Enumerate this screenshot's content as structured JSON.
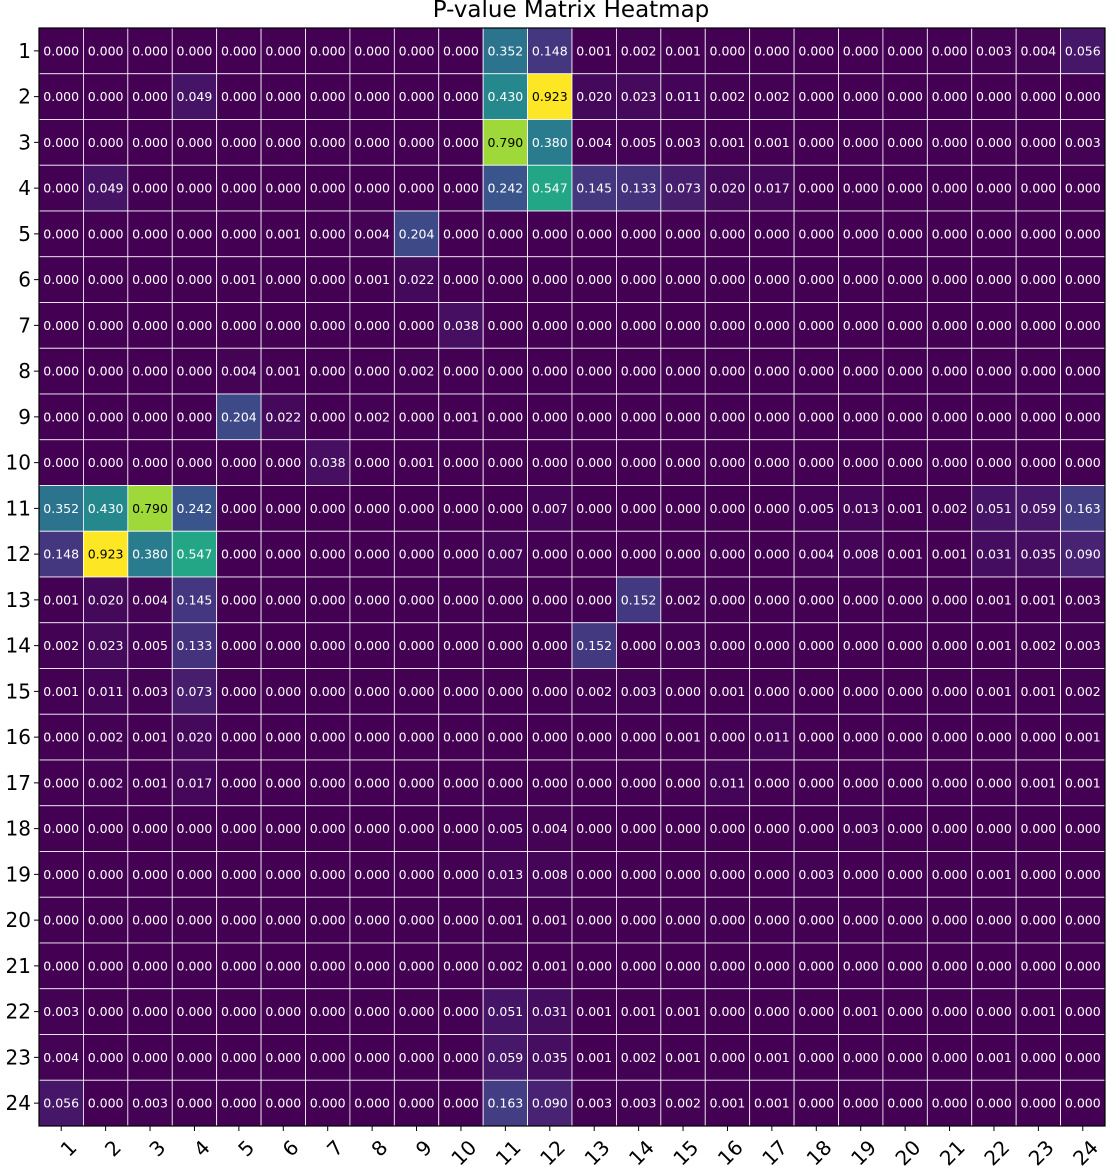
{
  "chart_data": {
    "type": "heatmap",
    "title": "P-value Matrix Heatmap",
    "xlabel": "",
    "ylabel": "",
    "x_categories": [
      "1",
      "2",
      "3",
      "4",
      "5",
      "6",
      "7",
      "8",
      "9",
      "10",
      "11",
      "12",
      "13",
      "14",
      "15",
      "16",
      "17",
      "18",
      "19",
      "20",
      "21",
      "22",
      "23",
      "24"
    ],
    "y_categories": [
      "1",
      "2",
      "3",
      "4",
      "5",
      "6",
      "7",
      "8",
      "9",
      "10",
      "11",
      "12",
      "13",
      "14",
      "15",
      "16",
      "17",
      "18",
      "19",
      "20",
      "21",
      "22",
      "23",
      "24"
    ],
    "colormap": "viridis",
    "vmin": 0,
    "vmax": 0.923,
    "grid": true,
    "values": [
      [
        0.0,
        0.0,
        0.0,
        0.0,
        0.0,
        0.0,
        0.0,
        0.0,
        0.0,
        0.0,
        0.352,
        0.148,
        0.001,
        0.002,
        0.001,
        0.0,
        0.0,
        0.0,
        0.0,
        0.0,
        0.0,
        0.003,
        0.004,
        0.056
      ],
      [
        0.0,
        0.0,
        0.0,
        0.049,
        0.0,
        0.0,
        0.0,
        0.0,
        0.0,
        0.0,
        0.43,
        0.923,
        0.02,
        0.023,
        0.011,
        0.002,
        0.002,
        0.0,
        0.0,
        0.0,
        0.0,
        0.0,
        0.0,
        0.0
      ],
      [
        0.0,
        0.0,
        0.0,
        0.0,
        0.0,
        0.0,
        0.0,
        0.0,
        0.0,
        0.0,
        0.79,
        0.38,
        0.004,
        0.005,
        0.003,
        0.001,
        0.001,
        0.0,
        0.0,
        0.0,
        0.0,
        0.0,
        0.0,
        0.003
      ],
      [
        0.0,
        0.049,
        0.0,
        0.0,
        0.0,
        0.0,
        0.0,
        0.0,
        0.0,
        0.0,
        0.242,
        0.547,
        0.145,
        0.133,
        0.073,
        0.02,
        0.017,
        0.0,
        0.0,
        0.0,
        0.0,
        0.0,
        0.0,
        0.0
      ],
      [
        0.0,
        0.0,
        0.0,
        0.0,
        0.0,
        0.001,
        0.0,
        0.004,
        0.204,
        0.0,
        0.0,
        0.0,
        0.0,
        0.0,
        0.0,
        0.0,
        0.0,
        0.0,
        0.0,
        0.0,
        0.0,
        0.0,
        0.0,
        0.0
      ],
      [
        0.0,
        0.0,
        0.0,
        0.0,
        0.001,
        0.0,
        0.0,
        0.001,
        0.022,
        0.0,
        0.0,
        0.0,
        0.0,
        0.0,
        0.0,
        0.0,
        0.0,
        0.0,
        0.0,
        0.0,
        0.0,
        0.0,
        0.0,
        0.0
      ],
      [
        0.0,
        0.0,
        0.0,
        0.0,
        0.0,
        0.0,
        0.0,
        0.0,
        0.0,
        0.038,
        0.0,
        0.0,
        0.0,
        0.0,
        0.0,
        0.0,
        0.0,
        0.0,
        0.0,
        0.0,
        0.0,
        0.0,
        0.0,
        0.0
      ],
      [
        0.0,
        0.0,
        0.0,
        0.0,
        0.004,
        0.001,
        0.0,
        0.0,
        0.002,
        0.0,
        0.0,
        0.0,
        0.0,
        0.0,
        0.0,
        0.0,
        0.0,
        0.0,
        0.0,
        0.0,
        0.0,
        0.0,
        0.0,
        0.0
      ],
      [
        0.0,
        0.0,
        0.0,
        0.0,
        0.204,
        0.022,
        0.0,
        0.002,
        0.0,
        0.001,
        0.0,
        0.0,
        0.0,
        0.0,
        0.0,
        0.0,
        0.0,
        0.0,
        0.0,
        0.0,
        0.0,
        0.0,
        0.0,
        0.0
      ],
      [
        0.0,
        0.0,
        0.0,
        0.0,
        0.0,
        0.0,
        0.038,
        0.0,
        0.001,
        0.0,
        0.0,
        0.0,
        0.0,
        0.0,
        0.0,
        0.0,
        0.0,
        0.0,
        0.0,
        0.0,
        0.0,
        0.0,
        0.0,
        0.0
      ],
      [
        0.352,
        0.43,
        0.79,
        0.242,
        0.0,
        0.0,
        0.0,
        0.0,
        0.0,
        0.0,
        0.0,
        0.007,
        0.0,
        0.0,
        0.0,
        0.0,
        0.0,
        0.005,
        0.013,
        0.001,
        0.002,
        0.051,
        0.059,
        0.163
      ],
      [
        0.148,
        0.923,
        0.38,
        0.547,
        0.0,
        0.0,
        0.0,
        0.0,
        0.0,
        0.0,
        0.007,
        0.0,
        0.0,
        0.0,
        0.0,
        0.0,
        0.0,
        0.004,
        0.008,
        0.001,
        0.001,
        0.031,
        0.035,
        0.09
      ],
      [
        0.001,
        0.02,
        0.004,
        0.145,
        0.0,
        0.0,
        0.0,
        0.0,
        0.0,
        0.0,
        0.0,
        0.0,
        0.0,
        0.152,
        0.002,
        0.0,
        0.0,
        0.0,
        0.0,
        0.0,
        0.0,
        0.001,
        0.001,
        0.003
      ],
      [
        0.002,
        0.023,
        0.005,
        0.133,
        0.0,
        0.0,
        0.0,
        0.0,
        0.0,
        0.0,
        0.0,
        0.0,
        0.152,
        0.0,
        0.003,
        0.0,
        0.0,
        0.0,
        0.0,
        0.0,
        0.0,
        0.001,
        0.002,
        0.003
      ],
      [
        0.001,
        0.011,
        0.003,
        0.073,
        0.0,
        0.0,
        0.0,
        0.0,
        0.0,
        0.0,
        0.0,
        0.0,
        0.002,
        0.003,
        0.0,
        0.001,
        0.0,
        0.0,
        0.0,
        0.0,
        0.0,
        0.001,
        0.001,
        0.002
      ],
      [
        0.0,
        0.002,
        0.001,
        0.02,
        0.0,
        0.0,
        0.0,
        0.0,
        0.0,
        0.0,
        0.0,
        0.0,
        0.0,
        0.0,
        0.001,
        0.0,
        0.011,
        0.0,
        0.0,
        0.0,
        0.0,
        0.0,
        0.0,
        0.001
      ],
      [
        0.0,
        0.002,
        0.001,
        0.017,
        0.0,
        0.0,
        0.0,
        0.0,
        0.0,
        0.0,
        0.0,
        0.0,
        0.0,
        0.0,
        0.0,
        0.011,
        0.0,
        0.0,
        0.0,
        0.0,
        0.0,
        0.0,
        0.001,
        0.001
      ],
      [
        0.0,
        0.0,
        0.0,
        0.0,
        0.0,
        0.0,
        0.0,
        0.0,
        0.0,
        0.0,
        0.005,
        0.004,
        0.0,
        0.0,
        0.0,
        0.0,
        0.0,
        0.0,
        0.003,
        0.0,
        0.0,
        0.0,
        0.0,
        0.0
      ],
      [
        0.0,
        0.0,
        0.0,
        0.0,
        0.0,
        0.0,
        0.0,
        0.0,
        0.0,
        0.0,
        0.013,
        0.008,
        0.0,
        0.0,
        0.0,
        0.0,
        0.0,
        0.003,
        0.0,
        0.0,
        0.0,
        0.001,
        0.0,
        0.0
      ],
      [
        0.0,
        0.0,
        0.0,
        0.0,
        0.0,
        0.0,
        0.0,
        0.0,
        0.0,
        0.0,
        0.001,
        0.001,
        0.0,
        0.0,
        0.0,
        0.0,
        0.0,
        0.0,
        0.0,
        0.0,
        0.0,
        0.0,
        0.0,
        0.0
      ],
      [
        0.0,
        0.0,
        0.0,
        0.0,
        0.0,
        0.0,
        0.0,
        0.0,
        0.0,
        0.0,
        0.002,
        0.001,
        0.0,
        0.0,
        0.0,
        0.0,
        0.0,
        0.0,
        0.0,
        0.0,
        0.0,
        0.0,
        0.0,
        0.0
      ],
      [
        0.003,
        0.0,
        0.0,
        0.0,
        0.0,
        0.0,
        0.0,
        0.0,
        0.0,
        0.0,
        0.051,
        0.031,
        0.001,
        0.001,
        0.001,
        0.0,
        0.0,
        0.0,
        0.001,
        0.0,
        0.0,
        0.0,
        0.001,
        0.0
      ],
      [
        0.004,
        0.0,
        0.0,
        0.0,
        0.0,
        0.0,
        0.0,
        0.0,
        0.0,
        0.0,
        0.059,
        0.035,
        0.001,
        0.002,
        0.001,
        0.0,
        0.001,
        0.0,
        0.0,
        0.0,
        0.0,
        0.001,
        0.0,
        0.0
      ],
      [
        0.056,
        0.0,
        0.003,
        0.0,
        0.0,
        0.0,
        0.0,
        0.0,
        0.0,
        0.0,
        0.163,
        0.09,
        0.003,
        0.003,
        0.002,
        0.001,
        0.001,
        0.0,
        0.0,
        0.0,
        0.0,
        0.0,
        0.0,
        0.0
      ]
    ]
  }
}
